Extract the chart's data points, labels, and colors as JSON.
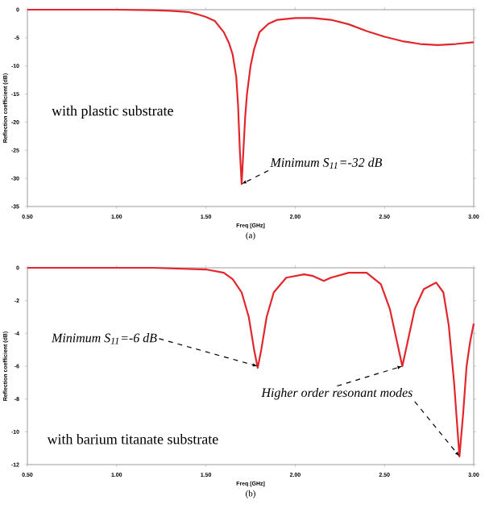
{
  "chart_data": [
    {
      "type": "line",
      "xlabel": "Freq [GHz]",
      "ylabel": "Reflection coefficient (dB)",
      "xlim": [
        0.5,
        3.0
      ],
      "ylim": [
        -35,
        0
      ],
      "xticks": [
        {
          "value": 0.5,
          "label": "0.50"
        },
        {
          "value": 1.0,
          "label": "1.00"
        },
        {
          "value": 1.5,
          "label": "1.50"
        },
        {
          "value": 2.0,
          "label": "2.00"
        },
        {
          "value": 2.5,
          "label": "2.50"
        },
        {
          "value": 3.0,
          "label": "3.00"
        }
      ],
      "yticks": [
        -35,
        -30,
        -25,
        -20,
        -15,
        -10,
        -5,
        0
      ],
      "x": [
        0.5,
        0.8,
        1.0,
        1.2,
        1.3,
        1.4,
        1.45,
        1.5,
        1.55,
        1.6,
        1.63,
        1.65,
        1.67,
        1.68,
        1.69,
        1.7,
        1.71,
        1.72,
        1.73,
        1.75,
        1.77,
        1.8,
        1.85,
        1.9,
        2.0,
        2.1,
        2.2,
        2.3,
        2.4,
        2.5,
        2.6,
        2.7,
        2.8,
        2.9,
        3.0
      ],
      "series": [
        {
          "color": "#e3262b",
          "values": [
            0,
            0,
            0,
            -0.1,
            -0.2,
            -0.4,
            -0.8,
            -1.3,
            -2,
            -4,
            -6,
            -8,
            -12,
            -17,
            -25,
            -31,
            -25,
            -19,
            -15,
            -10,
            -7,
            -4,
            -2.5,
            -1.8,
            -1.5,
            -1.5,
            -1.8,
            -2.6,
            -3.8,
            -4.8,
            -5.6,
            -6.1,
            -6.3,
            -6.1,
            -5.8
          ]
        }
      ],
      "annotations": [
        "with plastic substrate",
        {
          "text": "Minimum S$_{11}$=-32 dB",
          "x": 1.7,
          "y": -31
        },
        "(a)"
      ]
    },
    {
      "type": "line",
      "xlabel": "Freq [GHz]",
      "ylabel": "Reflection coefficient (dB)",
      "xlim": [
        0.5,
        3.0
      ],
      "ylim": [
        -12,
        0
      ],
      "xticks": [
        {
          "value": 0.5,
          "label": "0.50"
        },
        {
          "value": 1.0,
          "label": "1.00"
        },
        {
          "value": 1.5,
          "label": "1.50"
        },
        {
          "value": 2.0,
          "label": "2.00"
        },
        {
          "value": 2.5,
          "label": "2.50"
        },
        {
          "value": 3.0,
          "label": "3.00"
        }
      ],
      "yticks": [
        -12,
        -10,
        -8,
        -6,
        -4,
        -2,
        0
      ],
      "x": [
        0.5,
        1.0,
        1.2,
        1.5,
        1.6,
        1.65,
        1.7,
        1.74,
        1.77,
        1.79,
        1.81,
        1.84,
        1.88,
        1.95,
        2.05,
        2.1,
        2.16,
        2.2,
        2.3,
        2.4,
        2.48,
        2.53,
        2.57,
        2.6,
        2.63,
        2.67,
        2.72,
        2.79,
        2.83,
        2.86,
        2.89,
        2.91,
        2.92,
        2.94,
        2.96,
        2.98,
        3.0
      ],
      "series": [
        {
          "color": "#e3262b",
          "values": [
            0,
            0,
            0,
            -0.1,
            -0.3,
            -0.7,
            -1.5,
            -3,
            -5,
            -6.1,
            -5,
            -3,
            -1.5,
            -0.6,
            -0.4,
            -0.5,
            -0.8,
            -0.6,
            -0.3,
            -0.3,
            -1,
            -2.5,
            -4.5,
            -6,
            -4.5,
            -2.5,
            -1.3,
            -0.9,
            -1.5,
            -3.5,
            -7,
            -10,
            -11.5,
            -9,
            -6,
            -4.5,
            -3.4
          ]
        }
      ],
      "annotations": [
        "with barium titanate substrate",
        {
          "text": "Minimum S$_{11}$=-6 dB",
          "x": 1.79,
          "y": -6
        },
        {
          "text": "Higher order resonant modes",
          "x": 2.6,
          "y": -6
        },
        "(b)"
      ]
    }
  ]
}
